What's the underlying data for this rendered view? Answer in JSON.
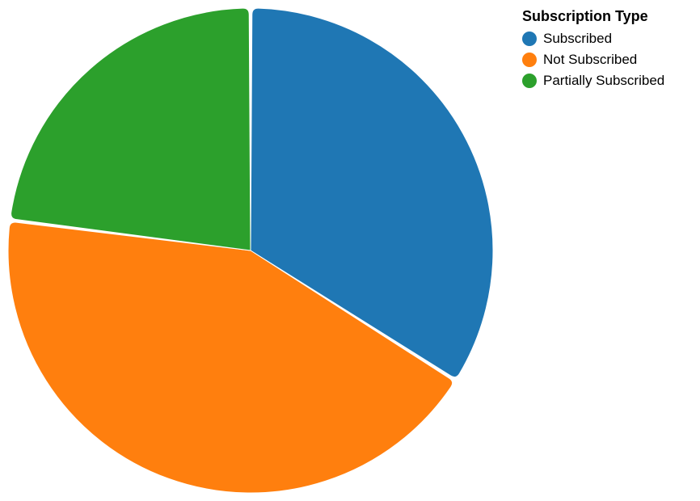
{
  "chart_data": {
    "type": "pie",
    "legend_title": "Subscription Type",
    "legend_position": "top-right",
    "series": [
      {
        "name": "Subscribed",
        "value": 34,
        "color": "#1f77b4"
      },
      {
        "name": "Not Subscribed",
        "value": 43,
        "color": "#ff7f0e"
      },
      {
        "name": "Partially Subscribed",
        "value": 23,
        "color": "#2ca02c"
      }
    ]
  }
}
